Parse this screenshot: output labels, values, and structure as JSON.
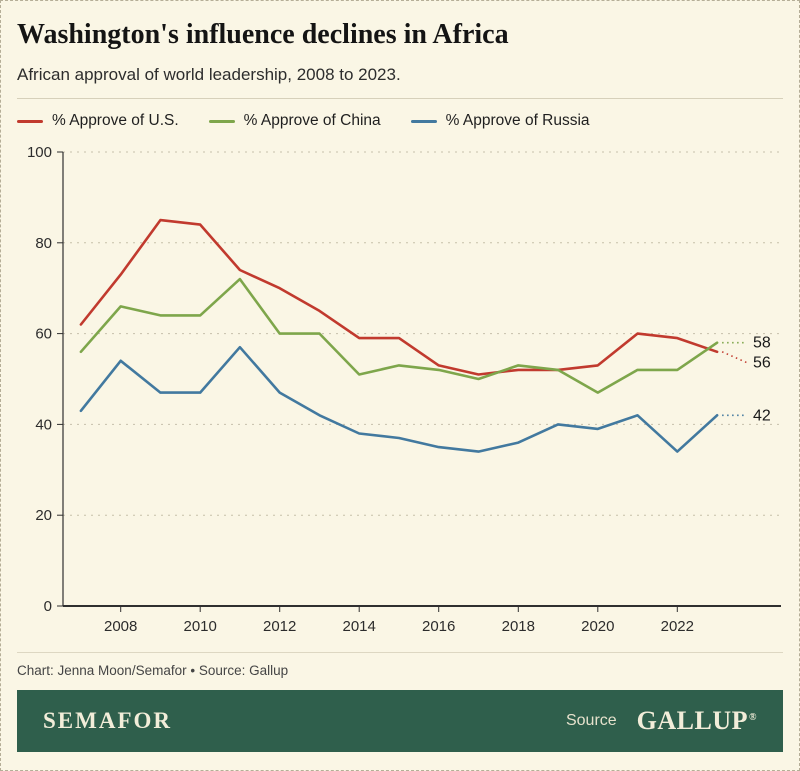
{
  "header": {
    "title": "Washington's influence declines in Africa",
    "subtitle": "African approval of world leadership, 2008 to 2023."
  },
  "chart_data": {
    "type": "line",
    "title": "Washington's influence declines in Africa",
    "subtitle": "African approval of world leadership, 2008 to 2023.",
    "x": [
      2007,
      2008,
      2009,
      2010,
      2011,
      2012,
      2013,
      2014,
      2015,
      2016,
      2017,
      2018,
      2019,
      2020,
      2021,
      2022,
      2023
    ],
    "x_ticks": [
      2008,
      2010,
      2012,
      2014,
      2016,
      2018,
      2020,
      2022
    ],
    "ylim": [
      0,
      100
    ],
    "y_ticks": [
      0,
      20,
      40,
      60,
      80,
      100
    ],
    "grid": "dashed-horizontal",
    "legend_position": "top",
    "series": [
      {
        "name": "% Approve of U.S.",
        "color": "#c13a2e",
        "values": [
          62,
          73,
          85,
          84,
          74,
          70,
          65,
          59,
          59,
          53,
          51,
          52,
          52,
          53,
          60,
          59,
          56
        ]
      },
      {
        "name": "% Approve of China",
        "color": "#7ea64b",
        "values": [
          56,
          66,
          64,
          64,
          72,
          60,
          60,
          51,
          53,
          52,
          50,
          53,
          52,
          47,
          52,
          52,
          58
        ]
      },
      {
        "name": "% Approve of Russia",
        "color": "#42799f",
        "values": [
          43,
          54,
          47,
          47,
          57,
          47,
          42,
          38,
          37,
          35,
          34,
          36,
          40,
          39,
          42,
          34,
          42
        ]
      }
    ],
    "end_labels": [
      56,
      58,
      42
    ],
    "colors": {
      "grid": "#c6c0aa",
      "axis": "#2f2f2f"
    }
  },
  "caption": "Chart: Jenna Moon/Semafor • Source: Gallup",
  "footer": {
    "brand": "SEMAFOR",
    "source_label": "Source",
    "source_brand": "GALLUP",
    "registered": "®"
  }
}
